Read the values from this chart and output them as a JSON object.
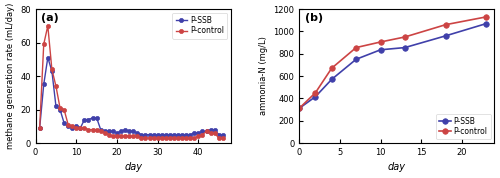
{
  "panel_a": {
    "title": "(a)",
    "xlabel": "day",
    "ylabel": "methane generation rate (mL/day)",
    "xlim": [
      0,
      48
    ],
    "ylim": [
      0,
      80
    ],
    "yticks": [
      0,
      20,
      40,
      60,
      80
    ],
    "xticks": [
      0,
      10,
      20,
      30,
      40
    ],
    "ssb_x": [
      1,
      2,
      3,
      4,
      5,
      6,
      7,
      8,
      9,
      10,
      11,
      12,
      13,
      14,
      15,
      16,
      17,
      18,
      19,
      20,
      21,
      22,
      23,
      24,
      25,
      26,
      27,
      28,
      29,
      30,
      31,
      32,
      33,
      34,
      35,
      36,
      37,
      38,
      39,
      40,
      41,
      42,
      43,
      44,
      45,
      46
    ],
    "ssb_y": [
      9,
      35,
      51,
      43,
      22,
      20,
      12,
      10,
      9,
      10,
      9,
      14,
      14,
      15,
      15,
      8,
      7,
      7,
      7,
      6,
      7,
      8,
      7,
      7,
      6,
      5,
      5,
      5,
      5,
      5,
      5,
      5,
      5,
      5,
      5,
      5,
      5,
      5,
      6,
      6,
      7,
      7,
      8,
      8,
      5,
      5
    ],
    "control_x": [
      1,
      2,
      3,
      4,
      5,
      6,
      7,
      8,
      9,
      10,
      11,
      12,
      13,
      14,
      15,
      16,
      17,
      18,
      19,
      20,
      21,
      22,
      23,
      24,
      25,
      26,
      27,
      28,
      29,
      30,
      31,
      32,
      33,
      34,
      35,
      36,
      37,
      38,
      39,
      40,
      41,
      42,
      43,
      44,
      45,
      46
    ],
    "control_y": [
      9,
      59,
      70,
      44,
      34,
      21,
      20,
      11,
      10,
      9,
      9,
      9,
      8,
      8,
      8,
      7,
      6,
      5,
      4,
      4,
      4,
      4,
      4,
      4,
      4,
      3,
      3,
      3,
      3,
      3,
      3,
      3,
      3,
      3,
      3,
      3,
      3,
      3,
      3,
      4,
      5,
      7,
      6,
      6,
      3,
      3
    ],
    "ssb_color": "#4040aa",
    "control_color": "#cc4444",
    "marker": "o",
    "markersize": 3,
    "linewidth": 1.0
  },
  "panel_b": {
    "title": "(b)",
    "xlabel": "day",
    "ylabel": "ammonia-N (mg/L)",
    "xlim": [
      0,
      24
    ],
    "ylim": [
      0,
      1200
    ],
    "yticks": [
      0,
      200,
      400,
      600,
      800,
      1000,
      1200
    ],
    "xticks": [
      0,
      5,
      10,
      15,
      20
    ],
    "ssb_x": [
      0,
      2,
      4,
      7,
      10,
      13,
      18,
      23
    ],
    "ssb_y": [
      310,
      415,
      570,
      750,
      835,
      855,
      960,
      1070
    ],
    "control_x": [
      0,
      2,
      4,
      7,
      10,
      13,
      18,
      23
    ],
    "control_y": [
      310,
      450,
      670,
      855,
      905,
      950,
      1060,
      1130
    ],
    "ssb_color": "#4040aa",
    "control_color": "#cc4444",
    "marker": "o",
    "markersize": 4,
    "linewidth": 1.2
  },
  "fig_bg": "#ffffff",
  "ax_bg": "#ffffff",
  "legend_a_loc": "upper right",
  "legend_b_loc": "lower right"
}
